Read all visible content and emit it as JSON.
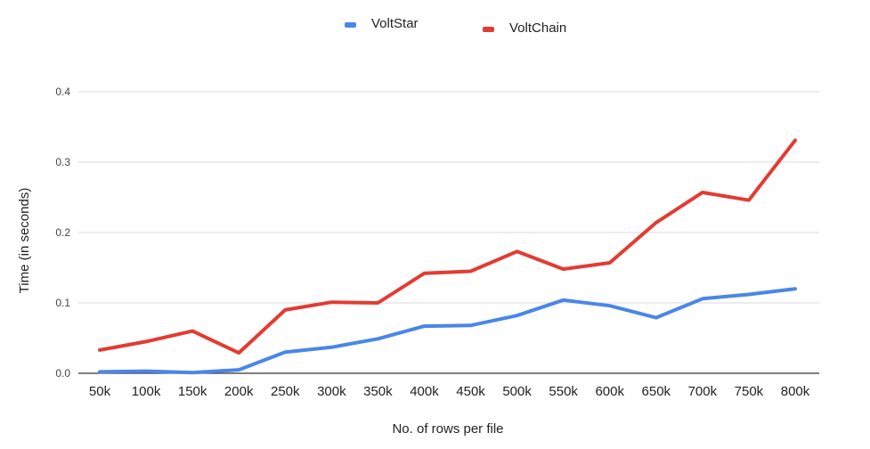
{
  "chart_data": {
    "type": "line",
    "title": "",
    "xlabel": "No. of rows per file",
    "ylabel": "Time (in seconds)",
    "categories": [
      "50k",
      "100k",
      "150k",
      "200k",
      "250k",
      "300k",
      "350k",
      "400k",
      "450k",
      "500k",
      "550k",
      "600k",
      "650k",
      "700k",
      "750k",
      "800k"
    ],
    "ylim": [
      0,
      0.4
    ],
    "yticks": [
      "0.0",
      "0.1",
      "0.2",
      "0.3",
      "0.4"
    ],
    "ytick_values": [
      0,
      0.1,
      0.2,
      0.3,
      0.4
    ],
    "grid": true,
    "legend_position": "top-center",
    "series": [
      {
        "name": "VoltStar",
        "color": "#4a86e8",
        "values": [
          0.002,
          0.003,
          0.001,
          0.005,
          0.03,
          0.037,
          0.049,
          0.067,
          0.068,
          0.082,
          0.104,
          0.096,
          0.079,
          0.106,
          0.112,
          0.12
        ]
      },
      {
        "name": "VoltChain",
        "color": "#e33b32",
        "values": [
          0.033,
          0.045,
          0.06,
          0.029,
          0.09,
          0.101,
          0.1,
          0.142,
          0.145,
          0.173,
          0.148,
          0.157,
          0.214,
          0.257,
          0.246,
          0.331
        ]
      }
    ]
  }
}
